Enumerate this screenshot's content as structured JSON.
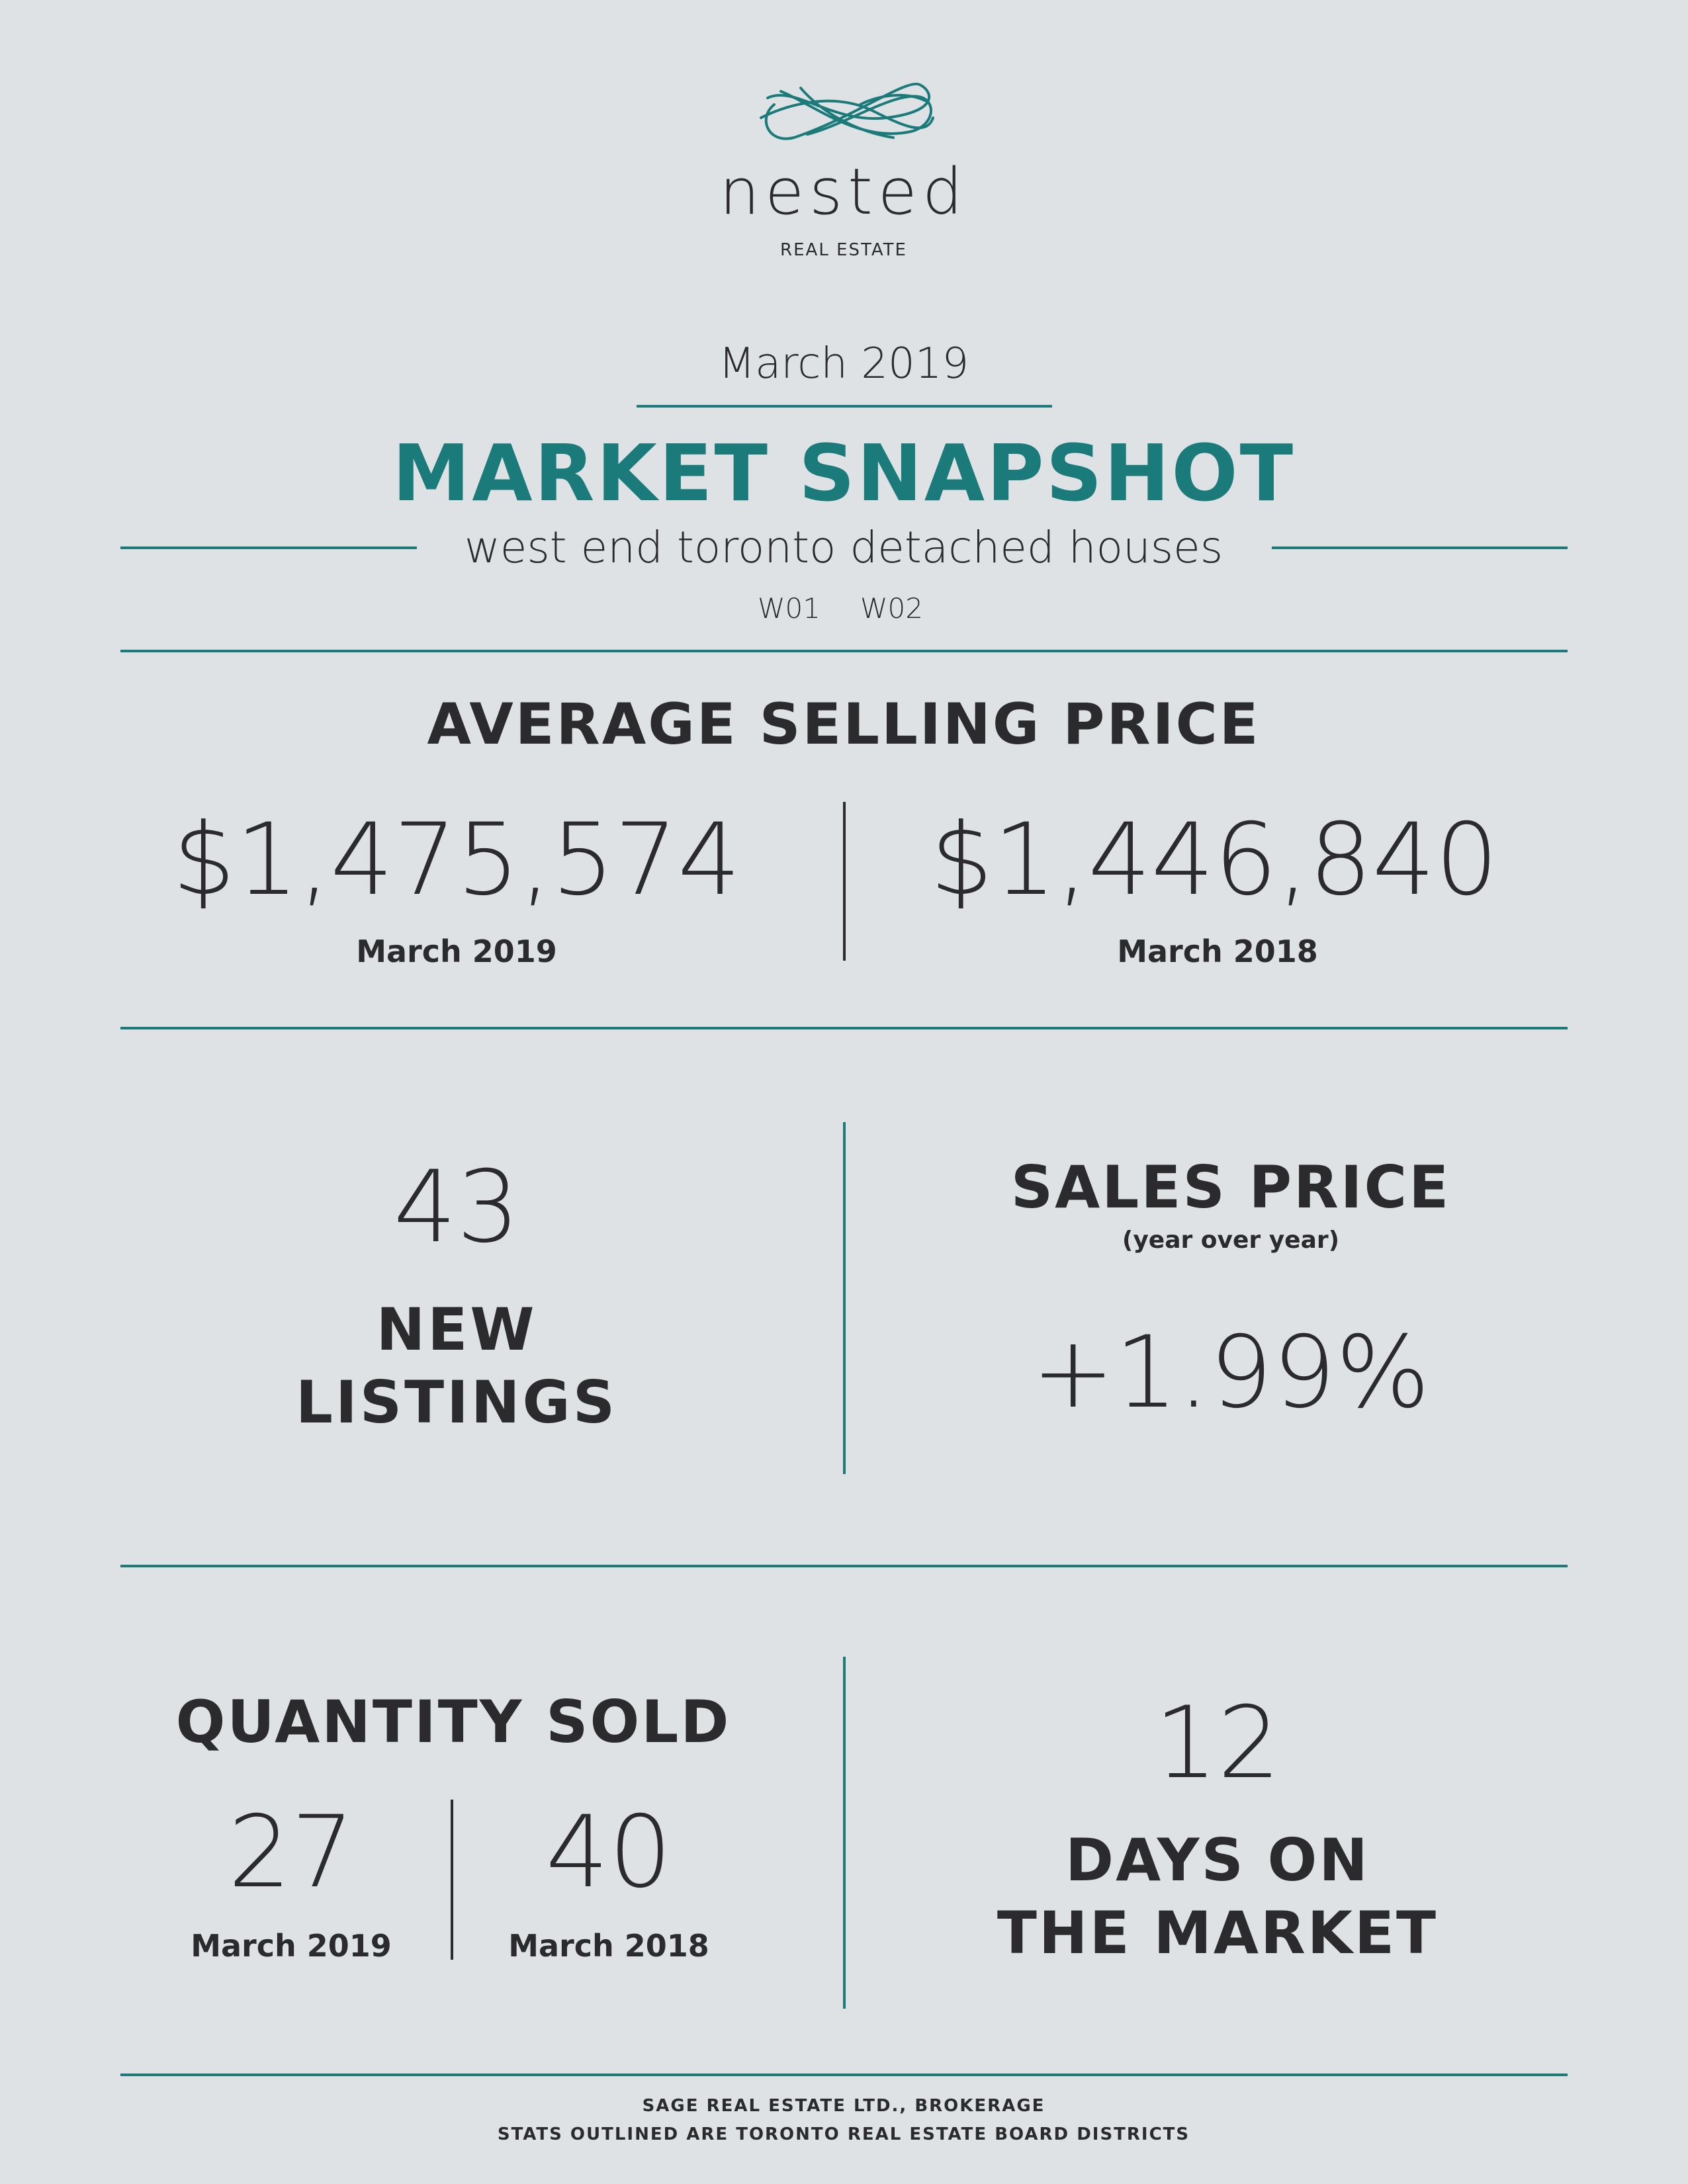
{
  "brand": {
    "name": "nested",
    "tagline": "REAL ESTATE"
  },
  "header": {
    "period": "March 2019",
    "title": "MARKET SNAPSHOT",
    "subtitle": "west end toronto detached houses",
    "district_1": "W01",
    "district_2": "W02"
  },
  "average_selling_price": {
    "heading": "AVERAGE SELLING PRICE",
    "current_value": "$1,475,574",
    "current_label": "March 2019",
    "previous_value": "$1,446,840",
    "previous_label": "March 2018"
  },
  "new_listings": {
    "value": "43",
    "label_line1": "NEW",
    "label_line2": "LISTINGS"
  },
  "sales_price": {
    "heading": "SALES PRICE",
    "subheading": "(year over year)",
    "value": "+1.99%"
  },
  "quantity_sold": {
    "heading": "QUANTITY SOLD",
    "current_value": "27",
    "current_label": "March 2019",
    "previous_value": "40",
    "previous_label": "March 2018"
  },
  "days_on_market": {
    "value": "12",
    "label_line1": "DAYS ON",
    "label_line2": "THE MARKET"
  },
  "footer": {
    "line1": "SAGE REAL ESTATE LTD., BROKERAGE",
    "line2": "STATS OUTLINED ARE TORONTO REAL ESTATE BOARD DISTRICTS"
  },
  "colors": {
    "background": "#dfe2e4",
    "accent": "#1b7b7b",
    "text": "#2b2b2d"
  }
}
